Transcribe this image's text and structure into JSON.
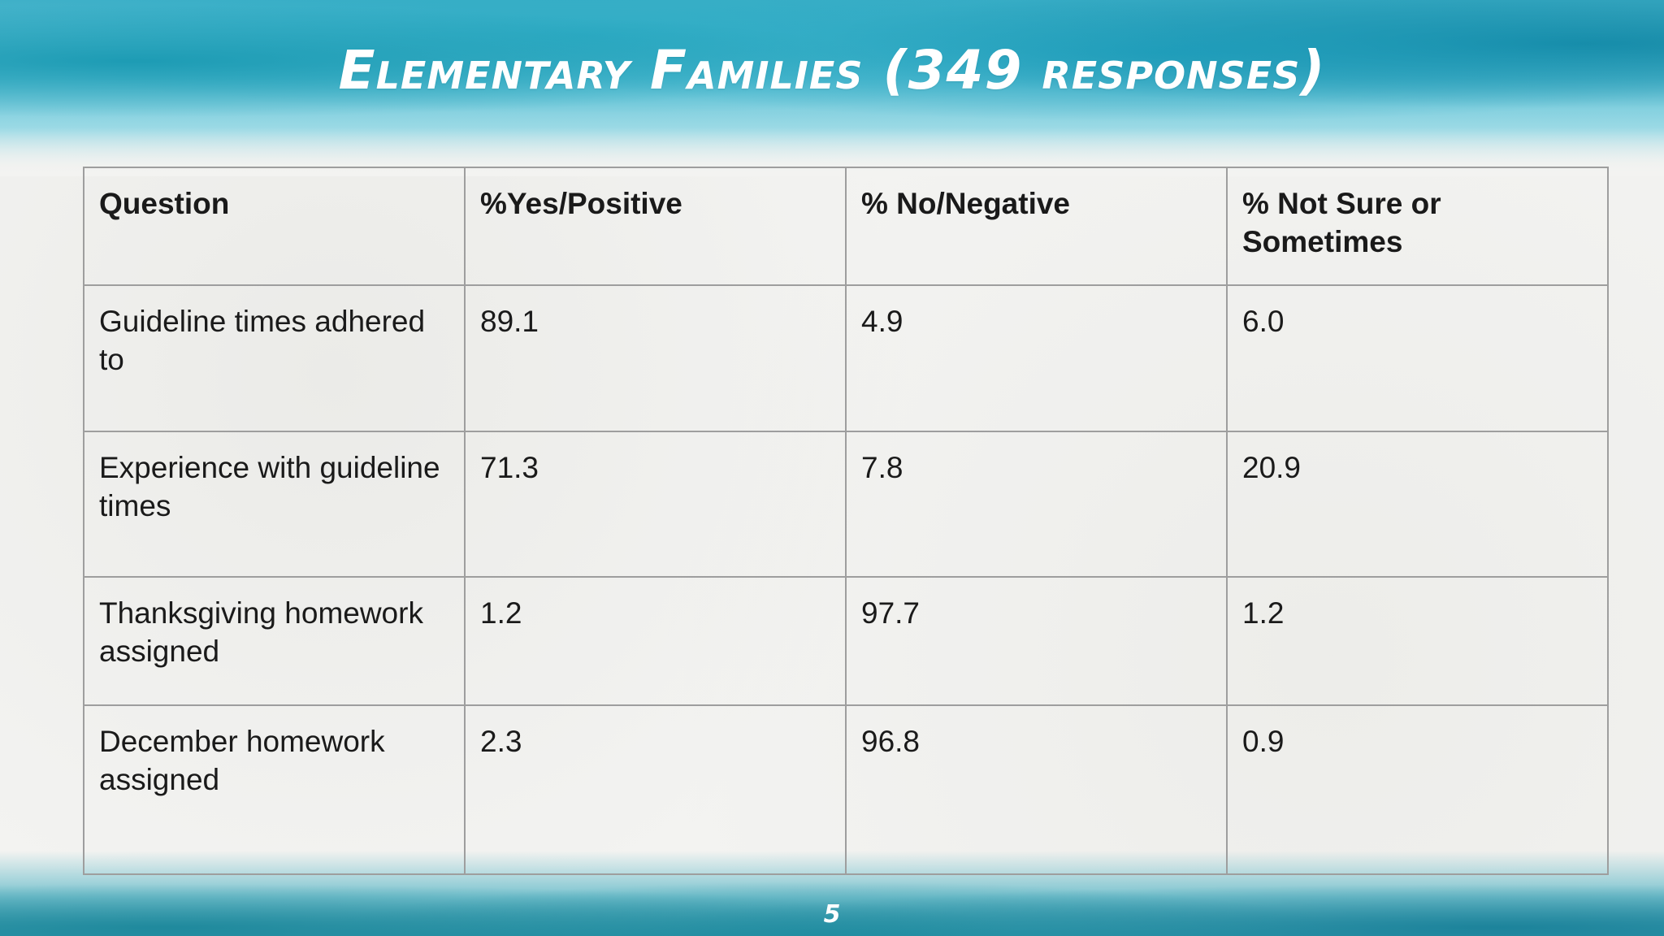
{
  "slide": {
    "title": "Elementary Families (349 responses)",
    "page_number": "5"
  },
  "table": {
    "headers": [
      "Question",
      "%Yes/Positive",
      "% No/Negative",
      "% Not Sure or Sometimes"
    ],
    "rows": [
      [
        "Guideline times adhered to",
        "89.1",
        "4.9",
        "6.0"
      ],
      [
        "Experience with guideline times",
        "71.3",
        "7.8",
        "20.9"
      ],
      [
        "Thanksgiving homework assigned",
        "1.2",
        "97.7",
        "1.2"
      ],
      [
        "December homework assigned",
        "2.3",
        "96.8",
        "0.9"
      ]
    ]
  },
  "colors": {
    "accent": "#3fb0c8",
    "title_text": "#ffffff",
    "table_border": "#9e9e9e",
    "text": "#1a1a1a"
  }
}
